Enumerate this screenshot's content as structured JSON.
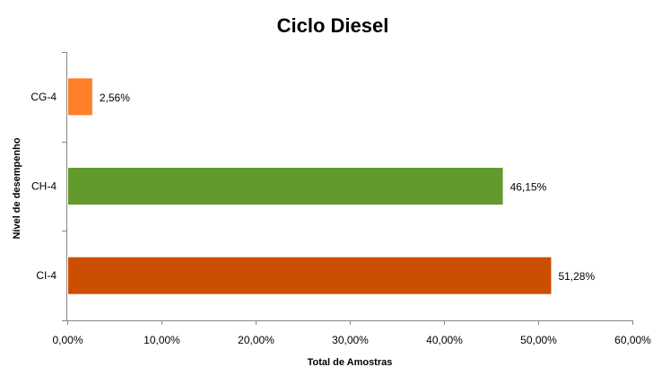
{
  "chart_data": {
    "type": "bar",
    "orientation": "horizontal",
    "title": "Ciclo Diesel",
    "xlabel": "Total de Amostras",
    "ylabel": "Nível de desempenho",
    "categories": [
      "CG-4",
      "CH-4",
      "CI-4"
    ],
    "values": [
      2.56,
      46.15,
      51.28
    ],
    "value_labels": [
      "2,56%",
      "46,15%",
      "51,28%"
    ],
    "colors": [
      "#FF7F2A",
      "#639A2D",
      "#CC4E00"
    ],
    "xlim": [
      0,
      60
    ],
    "x_ticks": [
      0,
      10,
      20,
      30,
      40,
      50,
      60
    ],
    "x_tick_labels": [
      "0,00%",
      "10,00%",
      "20,00%",
      "30,00%",
      "40,00%",
      "50,00%",
      "60,00%"
    ],
    "grid": false,
    "legend": "none"
  }
}
